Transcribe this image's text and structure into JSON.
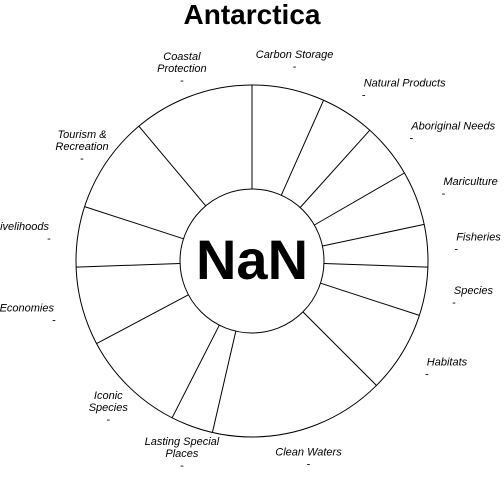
{
  "chart_data": {
    "type": "flower",
    "title": "Antarctica",
    "center_label": "NaN",
    "petals": [
      {
        "name": "Carbon Storage",
        "lines": [
          "Carbon Storage"
        ],
        "value_label": "-",
        "start": 90.0,
        "end": 66.0
      },
      {
        "name": "Natural Products",
        "lines": [
          "Natural Products"
        ],
        "value_label": "-",
        "start": 66.0,
        "end": 48.0
      },
      {
        "name": "Aboriginal Needs",
        "lines": [
          "Aboriginal Needs"
        ],
        "value_label": "-",
        "start": 48.0,
        "end": 30.0
      },
      {
        "name": "Mariculture",
        "lines": [
          "Mariculture"
        ],
        "value_label": "-",
        "start": 30.0,
        "end": 12.0
      },
      {
        "name": "Fisheries",
        "lines": [
          "Fisheries"
        ],
        "value_label": "-",
        "start": 12.0,
        "end": -2.0
      },
      {
        "name": "Species",
        "lines": [
          "Species"
        ],
        "value_label": "-",
        "start": -2.0,
        "end": -18.0
      },
      {
        "name": "Habitats",
        "lines": [
          "Habitats"
        ],
        "value_label": "-",
        "start": -18.0,
        "end": -45.0
      },
      {
        "name": "Clean Waters",
        "lines": [
          "Clean Waters"
        ],
        "value_label": "-",
        "start": -45.0,
        "end": -103.0
      },
      {
        "name": "Lasting Special Places",
        "lines": [
          "Lasting Special",
          "Places"
        ],
        "value_label": "-",
        "start": -103.0,
        "end": -117.0
      },
      {
        "name": "Iconic Species",
        "lines": [
          "Iconic",
          "Species"
        ],
        "value_label": "-",
        "start": -117.0,
        "end": -152.0
      },
      {
        "name": "Economies",
        "lines": [
          "Economies"
        ],
        "value_label": "-",
        "start": -152.0,
        "end": -178.0
      },
      {
        "name": "Livelihoods",
        "lines": [
          "Livelihoods"
        ],
        "value_label": "-",
        "start": 182.0,
        "end": 162.0
      },
      {
        "name": "Tourism & Recreation",
        "lines": [
          "Tourism &",
          "Recreation"
        ],
        "value_label": "-",
        "start": 162.0,
        "end": 130.0
      },
      {
        "name": "Coastal Protection",
        "lines": [
          "Coastal",
          "Protection"
        ],
        "value_label": "-",
        "start": 130.0,
        "end": 90.0
      }
    ]
  }
}
